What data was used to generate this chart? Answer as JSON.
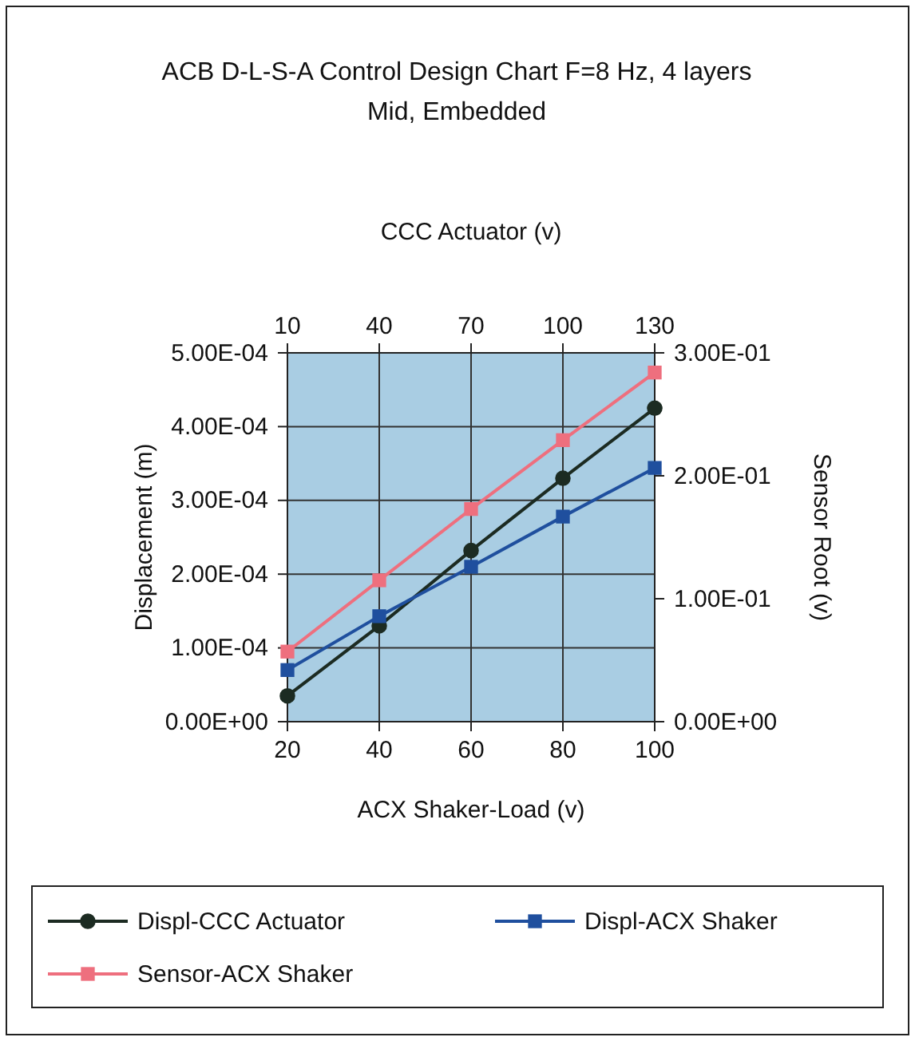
{
  "chart_data": {
    "type": "line",
    "title": "ACB D-L-S-A Control Design Chart F=8 Hz, 4 layers Mid, Embedded",
    "xlabel": "ACX Shaker-Load (v)",
    "x2label": "CCC Actuator (v)",
    "ylabel": "Displacement (m)",
    "y2label": "Sensor Root (v)",
    "x": [
      20,
      40,
      60,
      80,
      100
    ],
    "xlim": [
      20,
      100
    ],
    "xticks": [
      20,
      40,
      60,
      80,
      100
    ],
    "x2lim": [
      10,
      130
    ],
    "x2ticks": [
      10,
      40,
      70,
      100,
      130
    ],
    "ylim": [
      0,
      0.0005
    ],
    "yticks": [
      {
        "value": 0,
        "label": "0.00E+00"
      },
      {
        "value": 0.0001,
        "label": "1.00E-04"
      },
      {
        "value": 0.0002,
        "label": "2.00E-04"
      },
      {
        "value": 0.0003,
        "label": "3.00E-04"
      },
      {
        "value": 0.0004,
        "label": "4.00E-04"
      },
      {
        "value": 0.0005,
        "label": "5.00E-04"
      }
    ],
    "y2lim": [
      0,
      0.3
    ],
    "y2ticks": [
      {
        "value": 0,
        "label": "0.00E+00"
      },
      {
        "value": 0.1,
        "label": "1.00E-01"
      },
      {
        "value": 0.2,
        "label": "2.00E-01"
      },
      {
        "value": 0.3,
        "label": "3.00E-01"
      }
    ],
    "series": [
      {
        "name": "Displ-CCC Actuator",
        "color": "#1c2b22",
        "marker": "circle",
        "values": [
          3.5e-05,
          0.00013,
          0.000232,
          0.00033,
          0.000425
        ]
      },
      {
        "name": "Displ-ACX Shaker",
        "color": "#1f4f9e",
        "marker": "square",
        "values": [
          7e-05,
          0.000143,
          0.00021,
          0.000278,
          0.000344
        ]
      },
      {
        "name": "Sensor-ACX Shaker",
        "color": "#ee6f7e",
        "marker": "square",
        "axis": "y2",
        "values": [
          0.057,
          0.115,
          0.173,
          0.229,
          0.284
        ]
      }
    ],
    "grid": true,
    "legend": "bottom",
    "line_style": "solid"
  }
}
